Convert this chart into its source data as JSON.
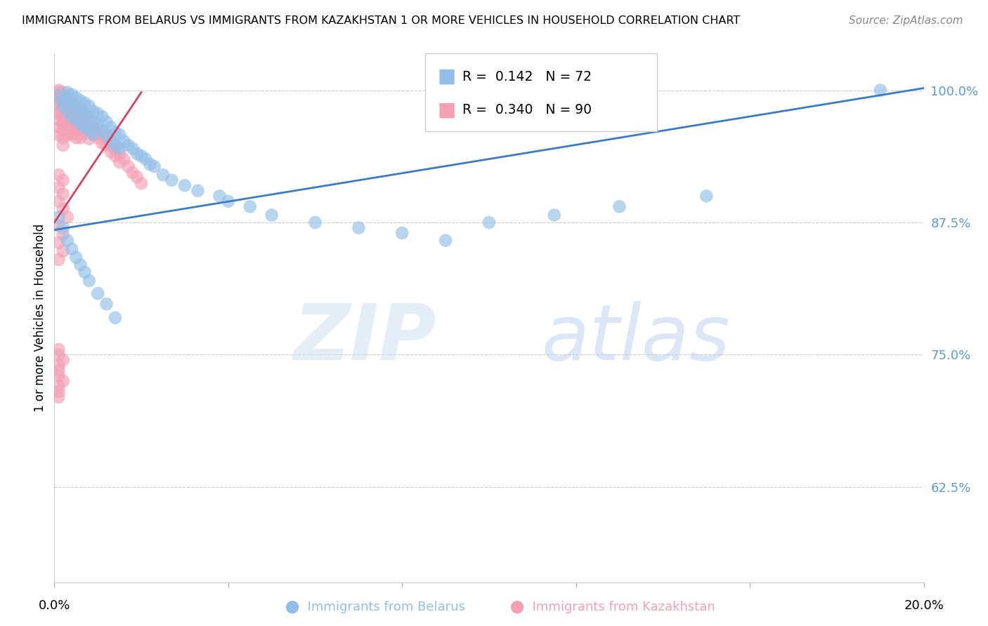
{
  "title": "IMMIGRANTS FROM BELARUS VS IMMIGRANTS FROM KAZAKHSTAN 1 OR MORE VEHICLES IN HOUSEHOLD CORRELATION CHART",
  "source": "Source: ZipAtlas.com",
  "ylabel": "1 or more Vehicles in Household",
  "yticks": [
    0.625,
    0.75,
    0.875,
    1.0
  ],
  "ytick_labels": [
    "62.5%",
    "75.0%",
    "87.5%",
    "100.0%"
  ],
  "xlim": [
    0.0,
    0.2
  ],
  "ylim": [
    0.535,
    1.035
  ],
  "legend_r_belarus": "0.142",
  "legend_n_belarus": "72",
  "legend_r_kazakhstan": "0.340",
  "legend_n_kazakhstan": "90",
  "color_belarus": "#92bfe8",
  "color_kazakhstan": "#f4a0b5",
  "trendline_color_belarus": "#3a7cc5",
  "trendline_color_kazakhstan": "#d94060",
  "belarus_x": [
    0.001,
    0.002,
    0.002,
    0.003,
    0.003,
    0.003,
    0.004,
    0.004,
    0.004,
    0.005,
    0.005,
    0.005,
    0.006,
    0.006,
    0.006,
    0.007,
    0.007,
    0.007,
    0.008,
    0.008,
    0.008,
    0.009,
    0.009,
    0.009,
    0.01,
    0.01,
    0.011,
    0.011,
    0.012,
    0.012,
    0.013,
    0.013,
    0.014,
    0.014,
    0.015,
    0.015,
    0.016,
    0.017,
    0.018,
    0.019,
    0.02,
    0.021,
    0.022,
    0.023,
    0.025,
    0.027,
    0.03,
    0.033,
    0.038,
    0.04,
    0.045,
    0.05,
    0.06,
    0.07,
    0.08,
    0.09,
    0.1,
    0.115,
    0.13,
    0.15,
    0.001,
    0.002,
    0.003,
    0.004,
    0.005,
    0.006,
    0.007,
    0.008,
    0.01,
    0.012,
    0.014,
    0.19
  ],
  "belarus_y": [
    0.995,
    0.99,
    0.985,
    0.998,
    0.992,
    0.98,
    0.996,
    0.988,
    0.975,
    0.993,
    0.985,
    0.972,
    0.99,
    0.982,
    0.968,
    0.988,
    0.978,
    0.965,
    0.985,
    0.975,
    0.962,
    0.98,
    0.97,
    0.958,
    0.978,
    0.968,
    0.975,
    0.962,
    0.97,
    0.958,
    0.965,
    0.952,
    0.96,
    0.948,
    0.958,
    0.945,
    0.952,
    0.948,
    0.945,
    0.94,
    0.938,
    0.935,
    0.93,
    0.928,
    0.92,
    0.915,
    0.91,
    0.905,
    0.9,
    0.895,
    0.89,
    0.882,
    0.875,
    0.87,
    0.865,
    0.858,
    0.875,
    0.882,
    0.89,
    0.9,
    0.88,
    0.87,
    0.858,
    0.85,
    0.842,
    0.835,
    0.828,
    0.82,
    0.808,
    0.798,
    0.785,
    1.0
  ],
  "belarus_trendline_x": [
    0.0,
    0.2
  ],
  "belarus_trendline_y": [
    0.868,
    1.002
  ],
  "kazakhstan_x": [
    0.001,
    0.001,
    0.001,
    0.001,
    0.001,
    0.001,
    0.001,
    0.001,
    0.001,
    0.001,
    0.001,
    0.002,
    0.002,
    0.002,
    0.002,
    0.002,
    0.002,
    0.002,
    0.002,
    0.002,
    0.002,
    0.003,
    0.003,
    0.003,
    0.003,
    0.003,
    0.003,
    0.003,
    0.004,
    0.004,
    0.004,
    0.004,
    0.004,
    0.004,
    0.005,
    0.005,
    0.005,
    0.005,
    0.005,
    0.006,
    0.006,
    0.006,
    0.006,
    0.007,
    0.007,
    0.007,
    0.008,
    0.008,
    0.008,
    0.009,
    0.009,
    0.01,
    0.01,
    0.011,
    0.011,
    0.012,
    0.012,
    0.013,
    0.013,
    0.014,
    0.014,
    0.015,
    0.015,
    0.016,
    0.017,
    0.018,
    0.019,
    0.02,
    0.001,
    0.002,
    0.001,
    0.002,
    0.001,
    0.002,
    0.003,
    0.001,
    0.002,
    0.001,
    0.002,
    0.001,
    0.001,
    0.001,
    0.002,
    0.001,
    0.001,
    0.001,
    0.002,
    0.001,
    0.001,
    0.001
  ],
  "kazakhstan_y": [
    1.0,
    0.998,
    0.996,
    0.993,
    0.99,
    0.986,
    0.982,
    0.978,
    0.972,
    0.965,
    0.958,
    0.998,
    0.994,
    0.99,
    0.985,
    0.98,
    0.974,
    0.968,
    0.962,
    0.955,
    0.948,
    0.994,
    0.99,
    0.985,
    0.978,
    0.972,
    0.965,
    0.958,
    0.99,
    0.985,
    0.978,
    0.972,
    0.965,
    0.958,
    0.985,
    0.978,
    0.97,
    0.962,
    0.955,
    0.98,
    0.972,
    0.964,
    0.955,
    0.975,
    0.968,
    0.96,
    0.97,
    0.962,
    0.954,
    0.965,
    0.958,
    0.962,
    0.955,
    0.958,
    0.95,
    0.955,
    0.948,
    0.95,
    0.942,
    0.945,
    0.938,
    0.94,
    0.932,
    0.935,
    0.928,
    0.922,
    0.918,
    0.912,
    0.92,
    0.915,
    0.908,
    0.902,
    0.895,
    0.888,
    0.88,
    0.872,
    0.864,
    0.856,
    0.848,
    0.84,
    0.755,
    0.75,
    0.745,
    0.74,
    0.735,
    0.73,
    0.725,
    0.72,
    0.715,
    0.71
  ],
  "kazakhstan_trendline_x": [
    0.0,
    0.02
  ],
  "kazakhstan_trendline_y": [
    0.875,
    0.998
  ]
}
